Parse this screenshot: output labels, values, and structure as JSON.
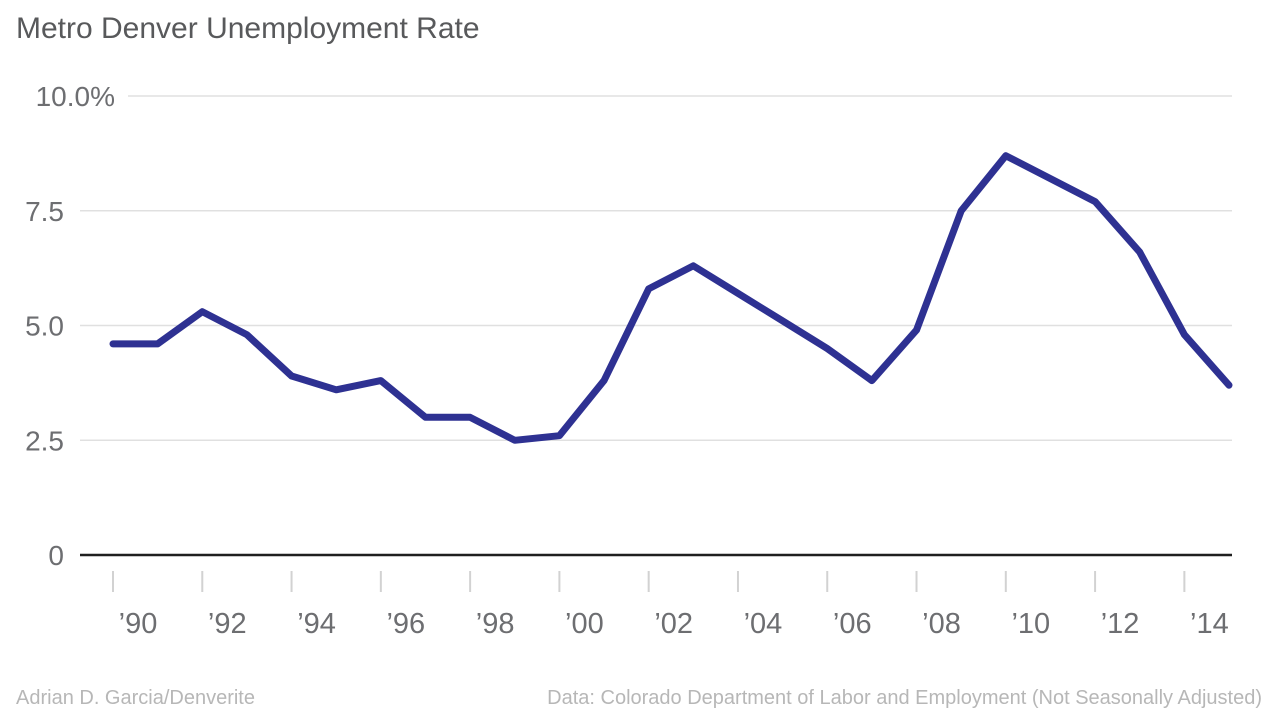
{
  "title": "Metro Denver Unemployment Rate",
  "footer": {
    "credit": "Adrian D. Garcia/Denverite",
    "source": "Data: Colorado Department of Labor and Employment (Not Seasonally Adjusted)"
  },
  "chart_data": {
    "type": "line",
    "title": "Metro Denver Unemployment Rate",
    "series_name": "Unemployment rate (%)",
    "x": [
      1990,
      1991,
      1992,
      1993,
      1994,
      1995,
      1996,
      1997,
      1998,
      1999,
      2000,
      2001,
      2002,
      2003,
      2004,
      2005,
      2006,
      2007,
      2008,
      2009,
      2010,
      2011,
      2012,
      2013,
      2014,
      2015
    ],
    "values": [
      4.6,
      4.6,
      5.3,
      4.8,
      3.9,
      3.6,
      3.8,
      3.0,
      3.0,
      2.5,
      2.6,
      3.8,
      5.8,
      6.3,
      5.7,
      5.1,
      4.5,
      3.8,
      4.9,
      7.5,
      8.7,
      8.2,
      7.7,
      6.6,
      4.8,
      3.7
    ],
    "xlabel": "",
    "ylabel": "",
    "ylim": [
      0,
      10
    ],
    "grid": true,
    "legend_position": "none",
    "yticks": [
      {
        "value": 0,
        "label": "0"
      },
      {
        "value": 2.5,
        "label": "2.5"
      },
      {
        "value": 5,
        "label": "5.0"
      },
      {
        "value": 7.5,
        "label": "7.5"
      },
      {
        "value": 10,
        "label": "10.0%"
      }
    ],
    "xtick_years": [
      1990,
      1992,
      1994,
      1996,
      1998,
      2000,
      2002,
      2004,
      2006,
      2008,
      2010,
      2012,
      2014
    ],
    "xtick_labels": [
      "’90",
      "’92",
      "’94",
      "’96",
      "’98",
      "’00",
      "’02",
      "’04",
      "’06",
      "’08",
      "’10",
      "’12",
      "’14"
    ],
    "colors": {
      "line": "#2e3192",
      "grid": "#e0e0e0",
      "zero_axis": "#1f1f1f",
      "tick": "#d2d2d2",
      "axis_label": "#6d6e71",
      "title": "#58595b",
      "footer_text": "#b7b7b7"
    }
  }
}
